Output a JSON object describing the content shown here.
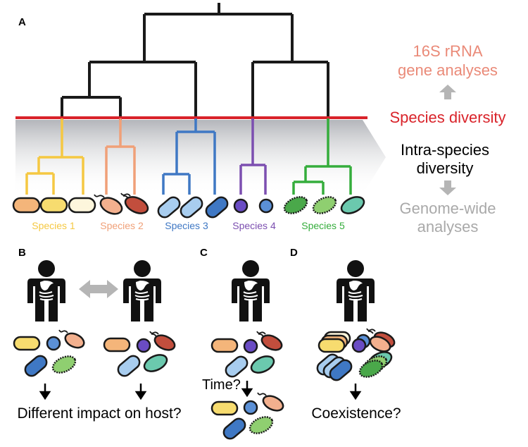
{
  "panels": {
    "a": {
      "letter": "A"
    },
    "b": {
      "letter": "B",
      "caption": "Different impact on host?"
    },
    "c": {
      "letter": "C",
      "time_label": "Time?"
    },
    "d": {
      "letter": "D",
      "caption": "Coexistence?"
    }
  },
  "labels": {
    "rrna_line1": "16S rRNA",
    "rrna_line2": "gene analyses",
    "species_diversity": "Species diversity",
    "intra_line1": "Intra-species",
    "intra_line2": "diversity",
    "genome_line1": "Genome-wide",
    "genome_line2": "analyses"
  },
  "species": [
    {
      "name": "Species 1",
      "color": "#f5c842"
    },
    {
      "name": "Species 2",
      "color": "#f0a078"
    },
    {
      "name": "Species 3",
      "color": "#3f78c4"
    },
    {
      "name": "Species 4",
      "color": "#7c4fb0"
    },
    {
      "name": "Species 5",
      "color": "#35ad3c"
    }
  ],
  "colors": {
    "species_diversity_line": "#d9232a",
    "rrna_text": "#ea8a78",
    "genome_text": "#a9a9a9",
    "arrow_gray": "#b5b5b5"
  }
}
